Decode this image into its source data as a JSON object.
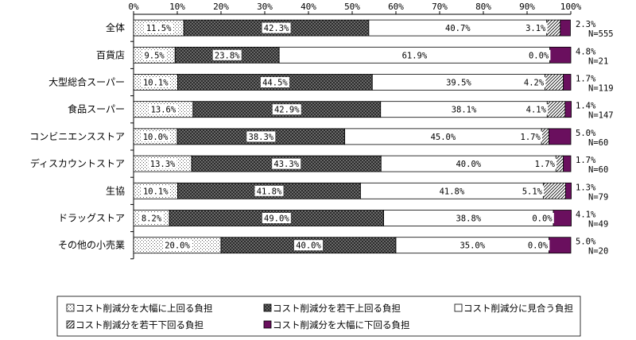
{
  "chart_data": {
    "type": "bar",
    "orientation": "horizontal",
    "stacked": true,
    "percent": true,
    "xlim": [
      0,
      100
    ],
    "x_ticks": [
      "0%",
      "10%",
      "20%",
      "30%",
      "40%",
      "50%",
      "60%",
      "70%",
      "80%",
      "90%",
      "100%"
    ],
    "categories": [
      "全体",
      "百貨店",
      "大型総合スーパー",
      "食品スーパー",
      "コンビニエンスストア",
      "ディスカウントストア",
      "生協",
      "ドラッグストア",
      "その他の小売業"
    ],
    "n_labels": [
      "N=555",
      "N=21",
      "N=119",
      "N=147",
      "N=60",
      "N=60",
      "N=79",
      "N=49",
      "N=20"
    ],
    "series": [
      {
        "name": "コスト削減分を大幅に上回る負担",
        "values": [
          11.5,
          9.5,
          10.1,
          13.6,
          10.0,
          13.3,
          10.1,
          8.2,
          20.0
        ],
        "labels": [
          "11.5%",
          "9.5%",
          "10.1%",
          "13.6%",
          "10.0%",
          "13.3%",
          "10.1%",
          "8.2%",
          "20.0%"
        ]
      },
      {
        "name": "コスト削減分を若干上回る負担",
        "values": [
          42.3,
          23.8,
          44.5,
          42.9,
          38.3,
          43.3,
          41.8,
          49.0,
          40.0
        ],
        "labels": [
          "42.3%",
          "23.8%",
          "44.5%",
          "42.9%",
          "38.3%",
          "43.3%",
          "41.8%",
          "49.0%",
          "40.0%"
        ]
      },
      {
        "name": "コスト削減分に見合う負担",
        "values": [
          40.7,
          61.9,
          39.5,
          38.1,
          45.0,
          40.0,
          41.8,
          38.8,
          35.0
        ],
        "labels": [
          "40.7%",
          "61.9%",
          "39.5%",
          "38.1%",
          "45.0%",
          "40.0%",
          "41.8%",
          "38.8%",
          "35.0%"
        ]
      },
      {
        "name": "コスト削減分を若干下回る負担",
        "values": [
          3.1,
          0.0,
          4.2,
          4.1,
          1.7,
          1.7,
          5.1,
          0.0,
          0.0
        ],
        "labels": [
          "3.1%",
          "0.0%",
          "4.2%",
          "4.1%",
          "1.7%",
          "1.7%",
          "5.1%",
          "0.0%",
          "0.0%"
        ]
      },
      {
        "name": "コスト削減分を大幅に下回る負担",
        "values": [
          2.3,
          4.8,
          1.7,
          1.4,
          5.0,
          1.7,
          1.3,
          4.1,
          5.0
        ],
        "labels": [
          "2.3%",
          "4.8%",
          "1.7%",
          "1.4%",
          "5.0%",
          "1.7%",
          "1.3%",
          "4.1%",
          "5.0%"
        ]
      }
    ],
    "legend_position": "bottom",
    "colors": {
      "s4": "#6a0f5e",
      "outline": "#000000"
    }
  }
}
